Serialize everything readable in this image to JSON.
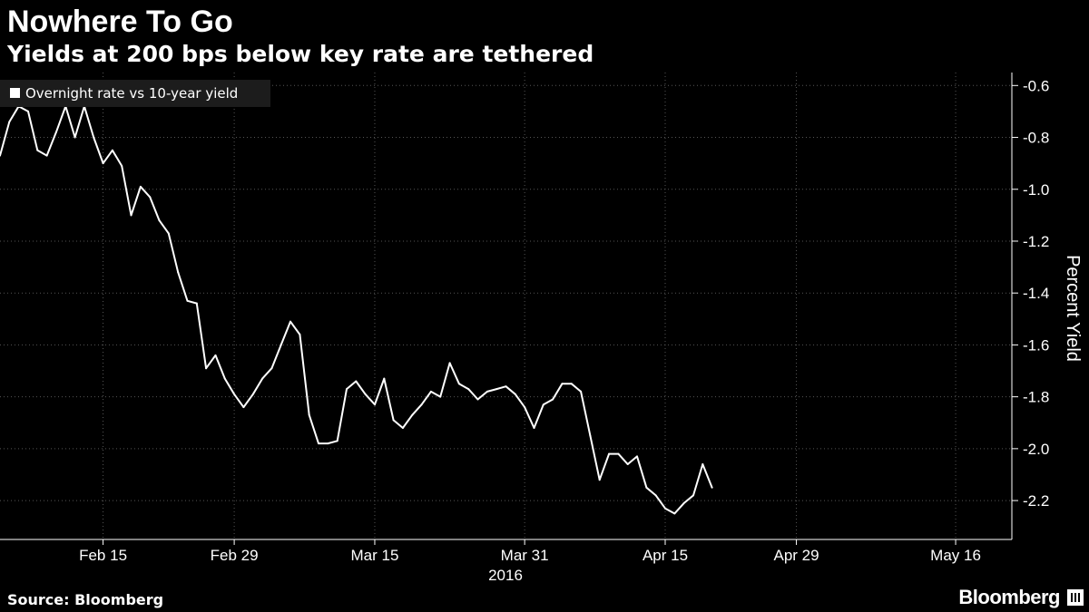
{
  "chart_data": {
    "type": "line",
    "title": "Nowhere To Go",
    "subtitle": "Yields at 200 bps below key rate are tethered",
    "ylabel": "Percent Yield",
    "xlabel": "2016",
    "ylim": [
      -2.35,
      -0.55
    ],
    "y_ticks": [
      -0.6,
      -0.8,
      -1.0,
      -1.2,
      -1.4,
      -1.6,
      -1.8,
      -2.0,
      -2.2
    ],
    "y_tick_labels": [
      "-0.6",
      "-0.8",
      "-1.0",
      "-1.2",
      "-1.4",
      "-1.6",
      "-1.8",
      "-2.0",
      "-2.2"
    ],
    "x_start": "2016-02-04",
    "x_end": "2016-05-22",
    "x_ticks": [
      "2016-02-15",
      "2016-02-29",
      "2016-03-15",
      "2016-03-31",
      "2016-04-15",
      "2016-04-29",
      "2016-05-16"
    ],
    "x_tick_labels": [
      "Feb 15",
      "Feb 29",
      "Mar 15",
      "Mar 31",
      "Apr 15",
      "Apr 29",
      "May 16"
    ],
    "grid": true,
    "legend_position": "top-left",
    "series": [
      {
        "name": "Overnight rate vs 10-year yield",
        "color": "#ffffff",
        "points": [
          [
            "2016-02-04",
            -0.87
          ],
          [
            "2016-02-05",
            -0.74
          ],
          [
            "2016-02-06",
            -0.68
          ],
          [
            "2016-02-07",
            -0.7
          ],
          [
            "2016-02-08",
            -0.85
          ],
          [
            "2016-02-09",
            -0.87
          ],
          [
            "2016-02-10",
            -0.78
          ],
          [
            "2016-02-11",
            -0.68
          ],
          [
            "2016-02-12",
            -0.8
          ],
          [
            "2016-02-13",
            -0.68
          ],
          [
            "2016-02-14",
            -0.8
          ],
          [
            "2016-02-15",
            -0.9
          ],
          [
            "2016-02-16",
            -0.85
          ],
          [
            "2016-02-17",
            -0.91
          ],
          [
            "2016-02-18",
            -1.1
          ],
          [
            "2016-02-19",
            -0.99
          ],
          [
            "2016-02-20",
            -1.03
          ],
          [
            "2016-02-21",
            -1.12
          ],
          [
            "2016-02-22",
            -1.17
          ],
          [
            "2016-02-23",
            -1.32
          ],
          [
            "2016-02-24",
            -1.43
          ],
          [
            "2016-02-25",
            -1.44
          ],
          [
            "2016-02-26",
            -1.69
          ],
          [
            "2016-02-27",
            -1.64
          ],
          [
            "2016-02-28",
            -1.73
          ],
          [
            "2016-02-29",
            -1.79
          ],
          [
            "2016-03-01",
            -1.84
          ],
          [
            "2016-03-02",
            -1.79
          ],
          [
            "2016-03-03",
            -1.73
          ],
          [
            "2016-03-04",
            -1.69
          ],
          [
            "2016-03-05",
            -1.6
          ],
          [
            "2016-03-06",
            -1.51
          ],
          [
            "2016-03-07",
            -1.56
          ],
          [
            "2016-03-08",
            -1.87
          ],
          [
            "2016-03-09",
            -1.98
          ],
          [
            "2016-03-10",
            -1.98
          ],
          [
            "2016-03-11",
            -1.97
          ],
          [
            "2016-03-12",
            -1.77
          ],
          [
            "2016-03-13",
            -1.74
          ],
          [
            "2016-03-14",
            -1.79
          ],
          [
            "2016-03-15",
            -1.83
          ],
          [
            "2016-03-16",
            -1.73
          ],
          [
            "2016-03-17",
            -1.89
          ],
          [
            "2016-03-18",
            -1.92
          ],
          [
            "2016-03-19",
            -1.87
          ],
          [
            "2016-03-20",
            -1.83
          ],
          [
            "2016-03-21",
            -1.78
          ],
          [
            "2016-03-22",
            -1.8
          ],
          [
            "2016-03-23",
            -1.67
          ],
          [
            "2016-03-24",
            -1.75
          ],
          [
            "2016-03-25",
            -1.77
          ],
          [
            "2016-03-26",
            -1.81
          ],
          [
            "2016-03-27",
            -1.78
          ],
          [
            "2016-03-28",
            -1.77
          ],
          [
            "2016-03-29",
            -1.76
          ],
          [
            "2016-03-30",
            -1.79
          ],
          [
            "2016-03-31",
            -1.84
          ],
          [
            "2016-04-01",
            -1.92
          ],
          [
            "2016-04-02",
            -1.83
          ],
          [
            "2016-04-03",
            -1.81
          ],
          [
            "2016-04-04",
            -1.75
          ],
          [
            "2016-04-05",
            -1.75
          ],
          [
            "2016-04-06",
            -1.78
          ],
          [
            "2016-04-07",
            -1.95
          ],
          [
            "2016-04-08",
            -2.12
          ],
          [
            "2016-04-09",
            -2.02
          ],
          [
            "2016-04-10",
            -2.02
          ],
          [
            "2016-04-11",
            -2.06
          ],
          [
            "2016-04-12",
            -2.03
          ],
          [
            "2016-04-13",
            -2.15
          ],
          [
            "2016-04-14",
            -2.18
          ],
          [
            "2016-04-15",
            -2.23
          ],
          [
            "2016-04-16",
            -2.25
          ],
          [
            "2016-04-17",
            -2.21
          ],
          [
            "2016-04-18",
            -2.18
          ],
          [
            "2016-04-19",
            -2.06
          ],
          [
            "2016-04-20",
            -2.15
          ]
        ]
      }
    ],
    "source": "Source: Bloomberg",
    "brand": "Bloomberg"
  }
}
